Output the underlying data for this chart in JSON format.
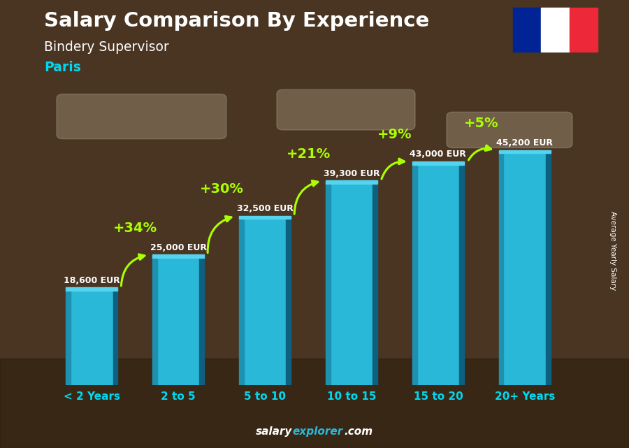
{
  "categories": [
    "< 2 Years",
    "2 to 5",
    "5 to 10",
    "10 to 15",
    "15 to 20",
    "20+ Years"
  ],
  "values": [
    18600,
    25000,
    32500,
    39300,
    43000,
    45200
  ],
  "labels": [
    "18,600 EUR",
    "25,000 EUR",
    "32,500 EUR",
    "39,300 EUR",
    "43,000 EUR",
    "45,200 EUR"
  ],
  "pct_changes": [
    "+34%",
    "+30%",
    "+21%",
    "+9%",
    "+5%"
  ],
  "bar_color_main": "#29b8d8",
  "bar_color_left": "#1e90b0",
  "bar_color_right": "#0d6080",
  "bar_color_top": "#55d4f0",
  "title": "Salary Comparison By Experience",
  "subtitle": "Bindery Supervisor",
  "city": "Paris",
  "ylabel": "Average Yearly Salary",
  "bg_color": "#5a3e2b",
  "title_color": "#ffffff",
  "subtitle_color": "#ffffff",
  "city_color": "#00d8f0",
  "pct_color": "#aaff00",
  "label_color": "#ffffff",
  "xtick_color": "#00d8f0",
  "ylim_max": 52000,
  "flag_colors": [
    "#002395",
    "#ffffff",
    "#ED2939"
  ],
  "arrow_color": "#aaff00",
  "source_bold_color": "#ffffff",
  "source_cyan_color": "#29b8d8"
}
